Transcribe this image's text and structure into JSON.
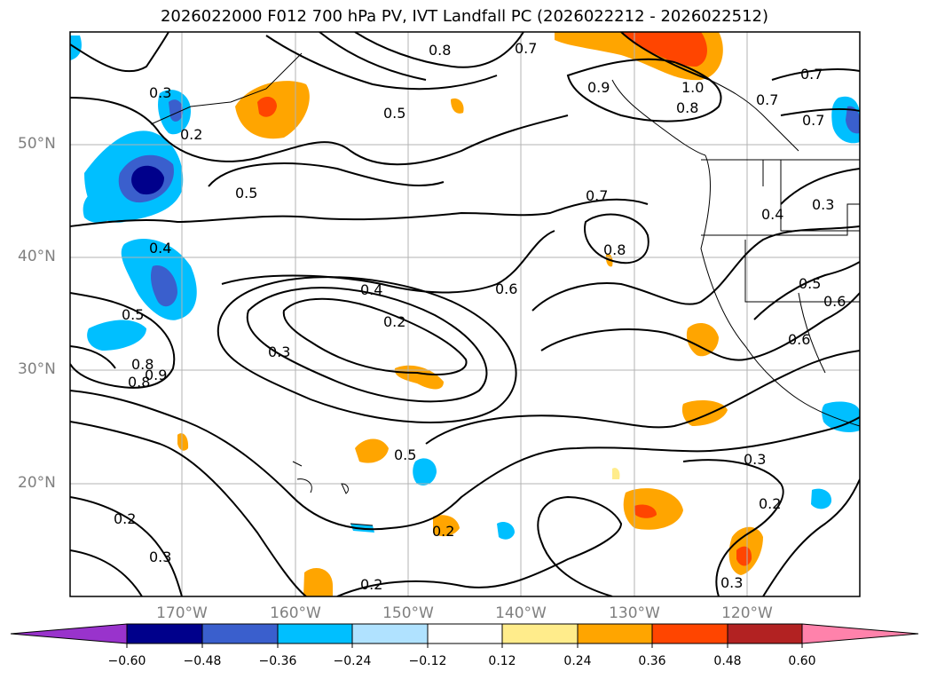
{
  "title": "2026022000 F012 700 hPa PV, IVT Landfall PC (2026022212 - 2026022512)",
  "map": {
    "lat_labels": [
      "50°N",
      "40°N",
      "30°N",
      "20°N"
    ],
    "lon_labels": [
      "170°W",
      "160°W",
      "150°W",
      "140°W",
      "130°W",
      "120°W"
    ],
    "contour_labels": [
      "0.8",
      "0.7",
      "0.9",
      "1.0",
      "0.8",
      "0.7",
      "0.7",
      "0.7",
      "0.3",
      "0.2",
      "0.5",
      "0.5",
      "0.7",
      "0.8",
      "0.4",
      "0.3",
      "0.4",
      "0.6",
      "0.4",
      "0.5",
      "0.6",
      "0.2",
      "0.3",
      "0.6",
      "0.5",
      "0.8",
      "0.9",
      "0.8",
      "0.5",
      "0.3",
      "0.2",
      "0.2",
      "0.2",
      "0.3",
      "0.2",
      "0.3"
    ]
  },
  "colorbar": {
    "colors": [
      "#9933cc",
      "#00008b",
      "#3a5fcd",
      "#00bfff",
      "#b0e2ff",
      "#ffffff",
      "#ffec8b",
      "#ffa500",
      "#ff4500",
      "#b22222",
      "#ff82ab"
    ],
    "ticks": [
      "−0.60",
      "−0.48",
      "−0.36",
      "−0.24",
      "−0.12",
      "0.12",
      "0.24",
      "0.36",
      "0.48",
      "0.60"
    ]
  },
  "colors": {
    "neg_light": "#b0e2ff",
    "neg_mid": "#00bfff",
    "neg_strong": "#3a5fcd",
    "neg_max": "#00008b",
    "pos_light": "#ffec8b",
    "pos_mid": "#ffa500",
    "pos_strong": "#ff4500"
  }
}
